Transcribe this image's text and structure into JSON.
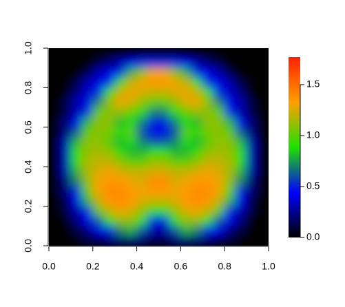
{
  "chart_data": {
    "type": "heatmap",
    "xlim": [
      0,
      1
    ],
    "ylim": [
      0,
      1
    ],
    "zlim": [
      0,
      1.77
    ],
    "xticks": [
      {
        "value": 0,
        "label": "0.0"
      },
      {
        "value": 0.2,
        "label": "0.2"
      },
      {
        "value": 0.4,
        "label": "0.4"
      },
      {
        "value": 0.6,
        "label": "0.6"
      },
      {
        "value": 0.8,
        "label": "0.8"
      },
      {
        "value": 1,
        "label": "1.0"
      }
    ],
    "yticks": [
      {
        "value": 0,
        "label": "0.0"
      },
      {
        "value": 0.2,
        "label": "0.2"
      },
      {
        "value": 0.4,
        "label": "0.4"
      },
      {
        "value": 0.6,
        "label": "0.6"
      },
      {
        "value": 0.8,
        "label": "0.8"
      },
      {
        "value": 1,
        "label": "1.0"
      }
    ],
    "zticks": [
      {
        "value": 0,
        "label": "0.0"
      },
      {
        "value": 0.5,
        "label": "0.5"
      },
      {
        "value": 1,
        "label": "1.0"
      },
      {
        "value": 1.5,
        "label": "1.5"
      }
    ],
    "colormap": [
      "#000000",
      "#0000ff",
      "#20e000",
      "#ffa000",
      "#ff2000"
    ],
    "z": [
      [
        0,
        0,
        0,
        0,
        0,
        0,
        0,
        0,
        0.1,
        0.1,
        0.1,
        0.1,
        0,
        0,
        0,
        0,
        0,
        0,
        0,
        0
      ],
      [
        0,
        0,
        0,
        0,
        0.1,
        0.2,
        0.3,
        0.4,
        0.5,
        0.5,
        0.5,
        0.5,
        0.4,
        0.3,
        0.2,
        0.1,
        0,
        0,
        0,
        0
      ],
      [
        0,
        0,
        0,
        0.1,
        0.3,
        0.4,
        0.5,
        0.8,
        1.1,
        1.3,
        1.3,
        1.1,
        0.8,
        0.5,
        0.4,
        0.3,
        0.1,
        0,
        0,
        0
      ],
      [
        0,
        0,
        0.1,
        0.3,
        0.4,
        0.5,
        0.9,
        1.2,
        1.3,
        1.35,
        1.35,
        1.3,
        1.2,
        0.9,
        0.5,
        0.4,
        0.3,
        0.1,
        0,
        0
      ],
      [
        0,
        0,
        0.2,
        0.35,
        0.5,
        0.9,
        1.2,
        1.3,
        1.25,
        1.2,
        1.2,
        1.25,
        1.3,
        1.2,
        0.9,
        0.5,
        0.35,
        0.2,
        0,
        0
      ],
      [
        0,
        0.1,
        0.3,
        0.4,
        0.7,
        1.1,
        1.3,
        1.25,
        1.1,
        1.0,
        1.0,
        1.1,
        1.25,
        1.3,
        1.1,
        0.7,
        0.4,
        0.3,
        0.1,
        0
      ],
      [
        0,
        0.1,
        0.3,
        0.5,
        1.0,
        1.1,
        1.1,
        1.0,
        0.9,
        0.7,
        0.7,
        0.9,
        1.0,
        1.1,
        1.1,
        1.0,
        0.5,
        0.3,
        0.1,
        0
      ],
      [
        0,
        0.2,
        0.4,
        0.8,
        1.1,
        1.1,
        0.8,
        0.9,
        0.7,
        0.5,
        0.5,
        0.7,
        0.9,
        0.8,
        1.1,
        1.1,
        0.8,
        0.4,
        0.2,
        0
      ],
      [
        0,
        0.2,
        0.6,
        1.0,
        1.1,
        1.05,
        0.9,
        1.0,
        0.6,
        0.4,
        0.4,
        0.6,
        1.0,
        0.9,
        1.05,
        1.1,
        1.0,
        0.6,
        0.2,
        0
      ],
      [
        0,
        0.3,
        0.8,
        1.1,
        1.1,
        1.0,
        0.8,
        0.9,
        0.7,
        0.6,
        0.6,
        0.7,
        0.9,
        0.8,
        1.0,
        1.1,
        1.1,
        0.8,
        0.3,
        0
      ],
      [
        0,
        0.3,
        0.9,
        1.1,
        1.15,
        1.1,
        0.9,
        0.8,
        0.8,
        0.9,
        0.9,
        0.8,
        0.8,
        0.9,
        1.1,
        1.15,
        1.1,
        0.9,
        0.3,
        0
      ],
      [
        0,
        0.3,
        0.9,
        1.15,
        1.2,
        1.2,
        1.1,
        1.0,
        1.0,
        1.1,
        1.1,
        1.0,
        1.0,
        1.1,
        1.2,
        1.2,
        1.15,
        0.9,
        0.3,
        0
      ],
      [
        0,
        0.3,
        0.8,
        1.15,
        1.25,
        1.3,
        1.25,
        1.2,
        1.2,
        1.25,
        1.25,
        1.2,
        1.2,
        1.25,
        1.3,
        1.25,
        1.15,
        0.8,
        0.3,
        0
      ],
      [
        0,
        0.2,
        0.7,
        1.1,
        1.3,
        1.35,
        1.35,
        1.3,
        1.25,
        1.4,
        1.4,
        1.25,
        1.3,
        1.35,
        1.35,
        1.3,
        1.1,
        0.7,
        0.2,
        0
      ],
      [
        0,
        0.2,
        0.5,
        1.0,
        1.3,
        1.4,
        1.4,
        1.35,
        1.3,
        1.35,
        1.35,
        1.3,
        1.35,
        1.4,
        1.4,
        1.3,
        1.0,
        0.5,
        0.2,
        0
      ],
      [
        0,
        0.1,
        0.4,
        0.8,
        1.2,
        1.35,
        1.4,
        1.35,
        1.25,
        1.2,
        1.2,
        1.25,
        1.35,
        1.4,
        1.35,
        1.2,
        0.8,
        0.4,
        0.1,
        0
      ],
      [
        0,
        0.1,
        0.3,
        0.5,
        1.0,
        1.2,
        1.3,
        1.25,
        1.1,
        0.9,
        0.9,
        1.1,
        1.25,
        1.3,
        1.2,
        1.0,
        0.5,
        0.3,
        0.1,
        0
      ],
      [
        0,
        0,
        0.2,
        0.4,
        0.6,
        0.9,
        1.1,
        1.1,
        0.9,
        0.5,
        0.5,
        0.9,
        1.1,
        1.1,
        0.9,
        0.6,
        0.4,
        0.2,
        0,
        0
      ],
      [
        0,
        0,
        0.1,
        0.2,
        0.4,
        0.5,
        0.7,
        0.8,
        0.6,
        0.3,
        0.3,
        0.6,
        0.8,
        0.7,
        0.5,
        0.4,
        0.2,
        0.1,
        0,
        0
      ],
      [
        0,
        0,
        0,
        0.1,
        0.1,
        0.2,
        0.2,
        0.2,
        0.2,
        0.1,
        0.1,
        0.2,
        0.2,
        0.2,
        0.2,
        0.1,
        0.1,
        0,
        0,
        0
      ]
    ]
  }
}
